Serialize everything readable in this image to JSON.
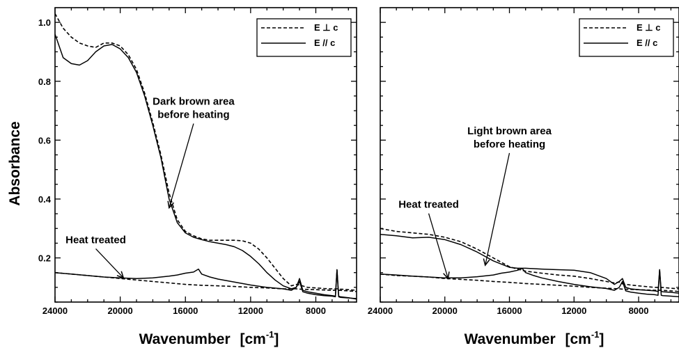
{
  "chart_data": [
    {
      "type": "line",
      "panel": "left",
      "xlabel": "Wavenumber",
      "xunit_base": "[cm",
      "xunit_exp": "-1",
      "xunit_close": "]",
      "ylabel": "Absorbance",
      "xlim": [
        24000,
        5500
      ],
      "ylim": [
        0.05,
        1.05
      ],
      "x_ticks": [
        "24000",
        "20000",
        "16000",
        "12000",
        "8000"
      ],
      "x_tick_values": [
        24000,
        20000,
        16000,
        12000,
        8000
      ],
      "y_ticks": [
        "0.2",
        "0.4",
        "0.6",
        "0.8",
        "1.0"
      ],
      "y_tick_values": [
        0.2,
        0.4,
        0.6,
        0.8,
        1.0
      ],
      "legend": {
        "position": "top-right",
        "entries": [
          "E ⊥ c",
          "E // c"
        ]
      },
      "annotations": [
        {
          "lines": [
            "Dark brown area",
            "before heating"
          ],
          "x": 15500,
          "y": 0.72,
          "arrow_to": [
            17000,
            0.37
          ]
        },
        {
          "lines": [
            "Heat treated"
          ],
          "x": 21500,
          "y": 0.25,
          "arrow_to": [
            19800,
            0.132
          ]
        }
      ],
      "series": [
        {
          "style": "dashed",
          "x": [
            24000,
            23500,
            23000,
            22500,
            22000,
            21500,
            21000,
            20500,
            20000,
            19500,
            19000,
            18500,
            18000,
            17500,
            17000,
            16500,
            16000,
            15500,
            15000,
            14500,
            14000,
            13500,
            13000,
            12500,
            12000,
            11500,
            11000,
            10500,
            10000,
            9500,
            9200,
            9000,
            8500,
            8000,
            7500,
            7000,
            6800,
            6600,
            6500,
            6000,
            5500
          ],
          "y": [
            1.03,
            0.98,
            0.95,
            0.93,
            0.92,
            0.915,
            0.93,
            0.93,
            0.92,
            0.89,
            0.84,
            0.76,
            0.66,
            0.55,
            0.42,
            0.33,
            0.29,
            0.275,
            0.265,
            0.26,
            0.26,
            0.26,
            0.26,
            0.258,
            0.25,
            0.23,
            0.2,
            0.165,
            0.13,
            0.105,
            0.11,
            0.108,
            0.1,
            0.098,
            0.096,
            0.095,
            0.095,
            0.095,
            0.094,
            0.092,
            0.09
          ]
        },
        {
          "style": "solid",
          "x": [
            24000,
            23500,
            23000,
            22500,
            22000,
            21500,
            21000,
            20500,
            20000,
            19500,
            19000,
            18500,
            18000,
            17500,
            17000,
            16500,
            16000,
            15500,
            15000,
            14500,
            14000,
            13500,
            13000,
            12500,
            12000,
            11500,
            11000,
            10500,
            10000,
            9500,
            9200,
            9000,
            8800,
            8500,
            8000,
            7500,
            7000,
            6800,
            6700,
            6600,
            6500,
            6000,
            5500
          ],
          "y": [
            0.96,
            0.88,
            0.86,
            0.855,
            0.87,
            0.9,
            0.92,
            0.925,
            0.91,
            0.88,
            0.83,
            0.75,
            0.65,
            0.54,
            0.4,
            0.32,
            0.285,
            0.27,
            0.262,
            0.255,
            0.25,
            0.245,
            0.238,
            0.225,
            0.205,
            0.18,
            0.15,
            0.125,
            0.105,
            0.095,
            0.1,
            0.13,
            0.09,
            0.085,
            0.08,
            0.075,
            0.072,
            0.07,
            0.16,
            0.07,
            0.068,
            0.065,
            0.06
          ]
        },
        {
          "style": "dashed",
          "x": [
            24000,
            23000,
            22000,
            21000,
            20000,
            19000,
            18000,
            17000,
            16000,
            15000,
            14000,
            13000,
            12000,
            11000,
            10000,
            9200,
            9000,
            8500,
            8000,
            7000,
            6600,
            6000,
            5500
          ],
          "y": [
            0.15,
            0.145,
            0.14,
            0.135,
            0.13,
            0.125,
            0.12,
            0.115,
            0.11,
            0.107,
            0.105,
            0.103,
            0.1,
            0.098,
            0.095,
            0.095,
            0.094,
            0.093,
            0.092,
            0.09,
            0.09,
            0.088,
            0.086
          ]
        },
        {
          "style": "solid",
          "x": [
            24000,
            23000,
            22000,
            21000,
            20000,
            19000,
            18000,
            17000,
            16500,
            16000,
            15500,
            15200,
            15000,
            14500,
            14000,
            13000,
            12000,
            11000,
            10000,
            9500,
            9200,
            9000,
            8800,
            8500,
            8000,
            7500,
            7000,
            6800,
            6700,
            6600,
            6500,
            6000,
            5500
          ],
          "y": [
            0.15,
            0.145,
            0.14,
            0.135,
            0.132,
            0.13,
            0.132,
            0.138,
            0.142,
            0.148,
            0.152,
            0.162,
            0.145,
            0.135,
            0.128,
            0.118,
            0.108,
            0.1,
            0.095,
            0.09,
            0.1,
            0.12,
            0.085,
            0.08,
            0.075,
            0.072,
            0.07,
            0.068,
            0.16,
            0.068,
            0.066,
            0.064,
            0.062
          ]
        }
      ]
    },
    {
      "type": "line",
      "panel": "right",
      "xlabel": "Wavenumber",
      "xunit_base": "[cm",
      "xunit_exp": "-1",
      "xunit_close": "]",
      "xlim": [
        24000,
        5500
      ],
      "ylim": [
        0.05,
        1.05
      ],
      "x_ticks": [
        "24000",
        "20000",
        "16000",
        "12000",
        "8000"
      ],
      "x_tick_values": [
        24000,
        20000,
        16000,
        12000,
        8000
      ],
      "legend": {
        "position": "top-right",
        "entries": [
          "E ⊥ c",
          "E // c"
        ]
      },
      "annotations": [
        {
          "lines": [
            "Light brown area",
            "before heating"
          ],
          "x": 16000,
          "y": 0.62,
          "arrow_to": [
            17500,
            0.175
          ]
        },
        {
          "lines": [
            "Heat treated"
          ],
          "x": 21000,
          "y": 0.37,
          "arrow_to": [
            19800,
            0.13
          ]
        }
      ],
      "series": [
        {
          "style": "dashed",
          "x": [
            24000,
            23000,
            22000,
            21000,
            20000,
            19000,
            18000,
            17000,
            16000,
            15500,
            15000,
            14000,
            13000,
            12000,
            11000,
            10000,
            9500,
            9200,
            9000,
            8500,
            8000,
            7000,
            6600,
            6000,
            5500
          ],
          "y": [
            0.3,
            0.29,
            0.285,
            0.28,
            0.27,
            0.255,
            0.23,
            0.2,
            0.17,
            0.162,
            0.155,
            0.148,
            0.142,
            0.138,
            0.13,
            0.12,
            0.115,
            0.118,
            0.112,
            0.108,
            0.105,
            0.1,
            0.1,
            0.097,
            0.095
          ]
        },
        {
          "style": "solid",
          "x": [
            24000,
            23000,
            22000,
            21000,
            20000,
            19000,
            18000,
            17000,
            16000,
            15500,
            15000,
            14000,
            13000,
            12000,
            11000,
            10000,
            9500,
            9200,
            9000,
            8800,
            8500,
            8000,
            7000,
            6800,
            6700,
            6600,
            6500,
            6000,
            5500
          ],
          "y": [
            0.28,
            0.275,
            0.268,
            0.27,
            0.262,
            0.245,
            0.22,
            0.19,
            0.168,
            0.165,
            0.165,
            0.162,
            0.16,
            0.158,
            0.15,
            0.13,
            0.11,
            0.12,
            0.13,
            0.1,
            0.095,
            0.092,
            0.088,
            0.086,
            0.16,
            0.086,
            0.085,
            0.083,
            0.08
          ]
        },
        {
          "style": "dashed",
          "x": [
            24000,
            23000,
            22000,
            21000,
            20000,
            19000,
            18000,
            17000,
            16000,
            15000,
            14000,
            13000,
            12000,
            11000,
            10000,
            9200,
            9000,
            8500,
            8000,
            7000,
            6600,
            6000,
            5500
          ],
          "y": [
            0.145,
            0.14,
            0.138,
            0.135,
            0.13,
            0.127,
            0.124,
            0.12,
            0.117,
            0.113,
            0.11,
            0.107,
            0.104,
            0.1,
            0.097,
            0.095,
            0.094,
            0.093,
            0.092,
            0.09,
            0.09,
            0.088,
            0.086
          ]
        },
        {
          "style": "solid",
          "x": [
            24000,
            23000,
            22000,
            21000,
            20000,
            19000,
            18000,
            17000,
            16500,
            16000,
            15500,
            15200,
            15000,
            14500,
            14000,
            13000,
            12000,
            11000,
            10000,
            9500,
            9200,
            9000,
            8800,
            8500,
            8000,
            7500,
            7000,
            6800,
            6700,
            6600,
            6500,
            6000,
            5500
          ],
          "y": [
            0.145,
            0.142,
            0.138,
            0.135,
            0.132,
            0.132,
            0.136,
            0.142,
            0.148,
            0.152,
            0.158,
            0.164,
            0.15,
            0.14,
            0.132,
            0.12,
            0.11,
            0.102,
            0.096,
            0.09,
            0.1,
            0.12,
            0.088,
            0.084,
            0.08,
            0.077,
            0.075,
            0.073,
            0.16,
            0.073,
            0.072,
            0.07,
            0.068
          ]
        }
      ]
    }
  ]
}
